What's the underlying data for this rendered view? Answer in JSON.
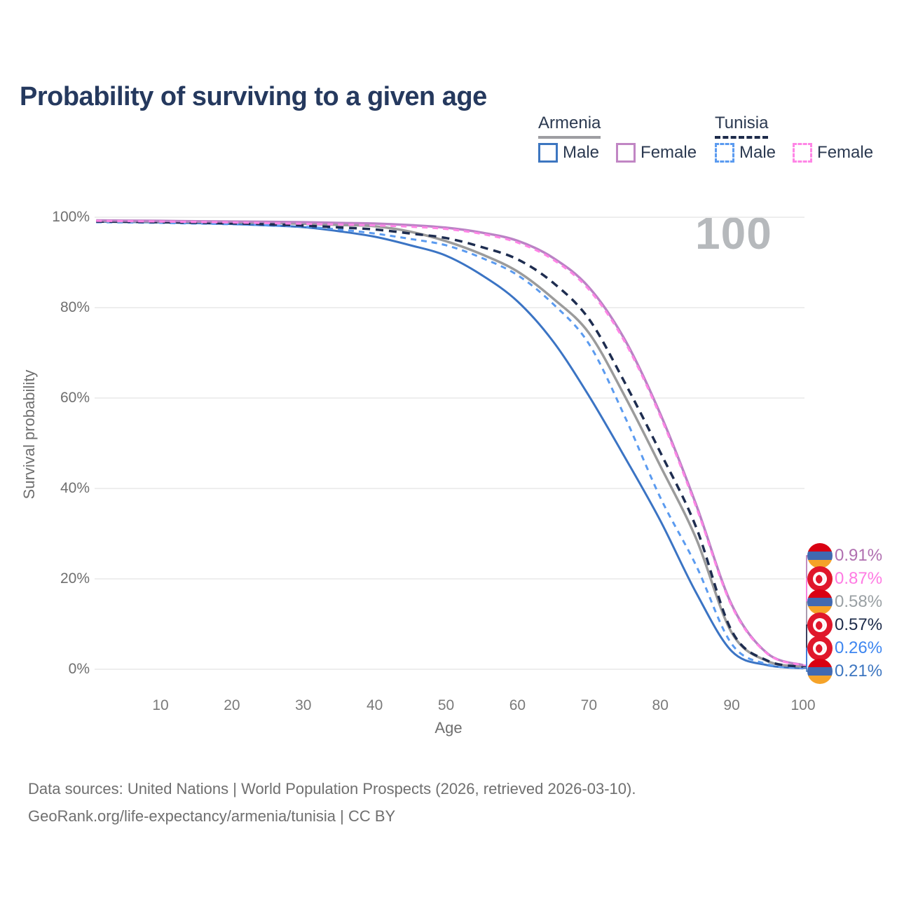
{
  "title": "Probability of surviving to a given age",
  "watermark": "100",
  "legend": {
    "groups": [
      {
        "title": "Armenia",
        "underline_style": "solid",
        "underline_color": "#9e9ea2",
        "items": [
          {
            "label": "Male",
            "color": "#3d76c0",
            "dashed": false
          },
          {
            "label": "Female",
            "color": "#c186c4",
            "dashed": false
          }
        ]
      },
      {
        "title": "Tunisia",
        "underline_style": "dashed",
        "underline_color": "#1d2b4a",
        "items": [
          {
            "label": "Male",
            "color": "#5b9bf0",
            "dashed": true
          },
          {
            "label": "Female",
            "color": "#ff85e6",
            "dashed": true
          }
        ]
      }
    ]
  },
  "chart_data": {
    "type": "line",
    "title": "Probability of surviving to a given age",
    "xlabel": "Age",
    "ylabel": "Survival probability",
    "xlim": [
      1,
      100
    ],
    "ylim": [
      0,
      100
    ],
    "grid": true,
    "legend_position": "top-right",
    "x_ticks": [
      10,
      20,
      30,
      40,
      50,
      60,
      70,
      80,
      90,
      100
    ],
    "y_ticks": [
      {
        "value": 0,
        "label": "0%"
      },
      {
        "value": 20,
        "label": "20%"
      },
      {
        "value": 40,
        "label": "40%"
      },
      {
        "value": 60,
        "label": "60%"
      },
      {
        "value": 80,
        "label": "80%"
      },
      {
        "value": 100,
        "label": "100%"
      }
    ],
    "ages": [
      1,
      5,
      10,
      15,
      20,
      25,
      30,
      35,
      40,
      45,
      50,
      55,
      60,
      65,
      70,
      75,
      80,
      85,
      90,
      95,
      100
    ],
    "series": [
      {
        "name": "Armenia Male",
        "country": "Armenia",
        "sex": "male",
        "color": "#3b74c4",
        "dash": null,
        "width": 3,
        "values": [
          99.0,
          98.95,
          98.85,
          98.7,
          98.5,
          98.2,
          97.8,
          96.9,
          95.7,
          93.8,
          91.5,
          87.2,
          81.4,
          72.5,
          60.5,
          47.0,
          32.9,
          17.0,
          4.0,
          0.9,
          0.21
        ]
      },
      {
        "name": "Tunisia Male",
        "country": "Tunisia",
        "sex": "male",
        "color": "#5b9bf0",
        "dash": "8 7",
        "width": 3,
        "values": [
          98.9,
          98.85,
          98.75,
          98.6,
          98.45,
          98.2,
          97.9,
          97.3,
          96.4,
          95.2,
          93.8,
          91.0,
          87.2,
          80.8,
          72.0,
          56.0,
          38.0,
          23.0,
          5.6,
          1.1,
          0.26
        ]
      },
      {
        "name": "Armenia Average",
        "country": "Armenia",
        "sex": "both",
        "color": "#9b9b9b",
        "dash": null,
        "width": 3.5,
        "values": [
          99.15,
          99.1,
          99.05,
          99.0,
          98.9,
          98.75,
          98.55,
          98.3,
          98.0,
          96.8,
          94.7,
          91.8,
          88.0,
          82.0,
          74.4,
          60.5,
          45.0,
          29.0,
          8.1,
          1.8,
          0.58
        ]
      },
      {
        "name": "Tunisia Average",
        "country": "Tunisia",
        "sex": "both",
        "color": "#1e2d50",
        "dash": "11 8",
        "width": 3.5,
        "values": [
          99.05,
          99.0,
          98.9,
          98.8,
          98.65,
          98.45,
          98.15,
          97.75,
          97.3,
          96.4,
          95.4,
          93.4,
          90.7,
          85.5,
          77.5,
          63.5,
          48.0,
          31.5,
          8.5,
          1.9,
          0.57
        ]
      },
      {
        "name": "Armenia Female",
        "country": "Armenia",
        "sex": "female",
        "color": "#bb82c5",
        "dash": null,
        "width": 3.5,
        "values": [
          99.3,
          99.25,
          99.2,
          99.1,
          99.05,
          99.0,
          98.9,
          98.75,
          98.6,
          98.25,
          97.7,
          96.6,
          94.8,
          91.0,
          84.5,
          73.0,
          56.5,
          36.5,
          14.3,
          3.5,
          0.91
        ]
      },
      {
        "name": "Tunisia Female",
        "country": "Tunisia",
        "sex": "female",
        "color": "#ff85e6",
        "dash": "8 7",
        "width": 3,
        "values": [
          99.2,
          99.15,
          99.05,
          98.95,
          98.85,
          98.7,
          98.55,
          98.4,
          98.2,
          97.9,
          97.4,
          96.3,
          94.4,
          90.6,
          84.0,
          72.5,
          56.0,
          36.0,
          14.0,
          3.4,
          0.87
        ]
      }
    ],
    "end_labels": [
      {
        "label": "0.91%",
        "flag": "armenia",
        "series": "Armenia Female",
        "color": "#b06fb0"
      },
      {
        "label": "0.87%",
        "flag": "tunisia",
        "series": "Tunisia Female",
        "color": "#ff7ae3"
      },
      {
        "label": "0.58%",
        "flag": "armenia",
        "series": "Armenia Average",
        "color": "#9aa0a4"
      },
      {
        "label": "0.57%",
        "flag": "tunisia",
        "series": "Tunisia Average",
        "color": "#1d2b4a"
      },
      {
        "label": "0.26%",
        "flag": "tunisia",
        "series": "Tunisia Male",
        "color": "#3e86f0"
      },
      {
        "label": "0.21%",
        "flag": "armenia",
        "series": "Armenia Male",
        "color": "#3d76c0"
      }
    ]
  },
  "footer": {
    "line1": "Data sources: United Nations | World Population Prospects (2026, retrieved 2026-03-10).",
    "line2": "GeoRank.org/life-expectancy/armenia/tunisia | CC BY"
  }
}
